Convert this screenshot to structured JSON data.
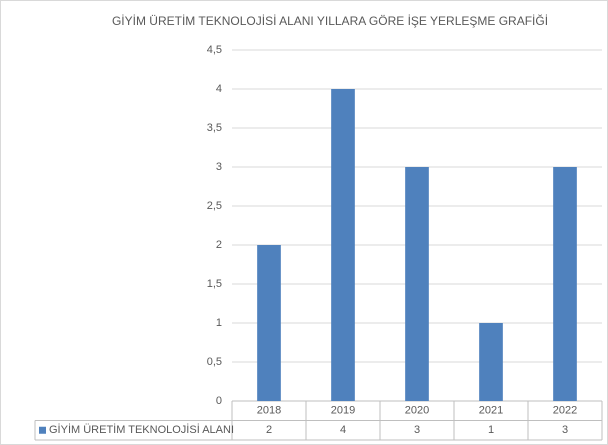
{
  "chart_data": {
    "type": "bar",
    "title": "GİYİM ÜRETİM TEKNOLOJİSİ ALANI YILLARA GÖRE İŞE YERLEŞME GRAFİĞİ",
    "categories": [
      "2018",
      "2019",
      "2020",
      "2021",
      "2022"
    ],
    "series": [
      {
        "name": "GİYİM ÜRETİM TEKNOLOJİSİ ALANI",
        "color": "#4f81bd",
        "values": [
          2,
          4,
          3,
          1,
          3
        ]
      }
    ],
    "ylim": [
      0,
      4.5
    ],
    "yticks": [
      0,
      {
        "value": 0.5,
        "label": "0,5"
      },
      1,
      {
        "value": 1.5,
        "label": "1,5"
      },
      2,
      {
        "value": 2.5,
        "label": "2,5"
      },
      3,
      {
        "value": 3.5,
        "label": "3,5"
      },
      4,
      {
        "value": 4.5,
        "label": "4,5"
      }
    ],
    "grid": true,
    "data_table": true
  }
}
